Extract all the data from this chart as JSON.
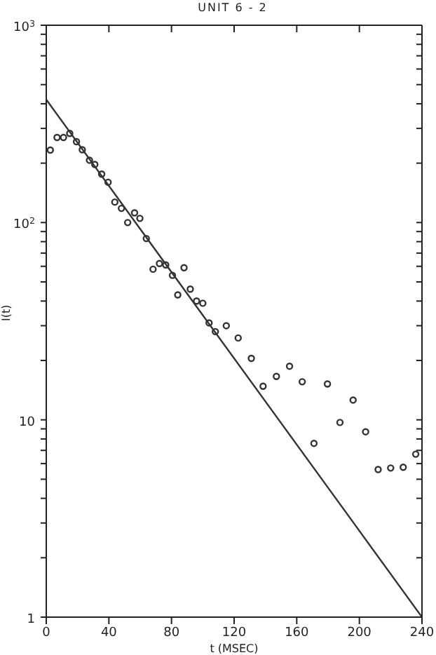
{
  "chart_data": {
    "type": "scatter",
    "title": "UNIT 6 - 2",
    "xlabel": "t (MSEC)",
    "ylabel": "I(t)",
    "log": "y",
    "marker": "circle",
    "xlim": [
      0,
      240
    ],
    "xticks": [
      0,
      40,
      80,
      120,
      160,
      200,
      240
    ],
    "ylim": [
      1,
      1000
    ],
    "yticks": [
      1,
      {
        "value": 2,
        "label": null
      },
      {
        "value": 3,
        "label": null
      },
      {
        "value": 4,
        "label": null
      },
      {
        "value": 5,
        "label": null
      },
      {
        "value": 6,
        "label": null
      },
      {
        "value": 7,
        "label": null
      },
      {
        "value": 8,
        "label": null
      },
      {
        "value": 9,
        "label": null
      },
      10,
      {
        "value": 20,
        "label": null
      },
      {
        "value": 30,
        "label": null
      },
      {
        "value": 40,
        "label": null
      },
      {
        "value": 50,
        "label": null
      },
      {
        "value": 60,
        "label": null
      },
      {
        "value": 70,
        "label": null
      },
      {
        "value": 80,
        "label": null
      },
      {
        "value": 90,
        "label": null
      },
      {
        "value": 100,
        "label": "10$^{2}$"
      },
      {
        "value": 200,
        "label": null
      },
      {
        "value": 300,
        "label": null
      },
      {
        "value": 400,
        "label": null
      },
      {
        "value": 500,
        "label": null
      },
      {
        "value": 600,
        "label": null
      },
      {
        "value": 700,
        "label": null
      },
      {
        "value": 800,
        "label": null
      },
      {
        "value": 900,
        "label": null
      },
      {
        "value": 1000,
        "label": "10$^{3}$"
      }
    ],
    "series": [
      {
        "color": "#333333",
        "x": [
          2.6,
          6.9,
          11,
          15,
          19.3,
          23,
          27.6,
          31,
          35.4,
          39.5,
          43.8,
          48,
          52,
          56.4,
          59.8,
          63.9,
          68.2,
          72.3,
          76.3,
          80.6,
          84,
          88,
          92,
          96,
          100,
          104,
          108,
          115,
          122.6,
          131,
          138.5,
          147,
          155.4,
          163.5,
          171,
          179.6,
          187.6,
          196,
          204,
          212,
          220,
          228,
          236
        ],
        "values": [
          233,
          270,
          270,
          283,
          257,
          234,
          207,
          197,
          176,
          160,
          127,
          118,
          100,
          112,
          105,
          83,
          58,
          62,
          61,
          54,
          43,
          59,
          46,
          40,
          39,
          31,
          28,
          30,
          26,
          20.5,
          14.8,
          16.6,
          18.7,
          15.6,
          7.6,
          15.2,
          9.7,
          12.6,
          8.7,
          5.6,
          5.7,
          5.75,
          6.7
        ]
      },
      {
        "type": "line",
        "color": "#333333",
        "marker": "none",
        "line_style": "solid",
        "x": [
          0,
          240
        ],
        "values": [
          420,
          1
        ]
      }
    ]
  }
}
